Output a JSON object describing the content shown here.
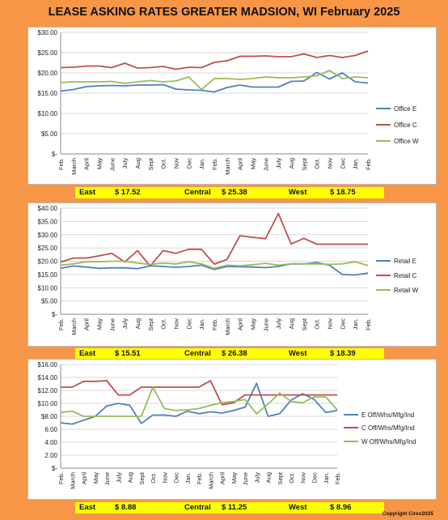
{
  "title": "LEASE ASKING RATES GREATER MADSION, WI  February 2025",
  "copyright": "Copyright Cirex2025",
  "x_labels": [
    "Feb.",
    "March",
    "April",
    "May",
    "June",
    "July",
    "Aug",
    "Sept",
    "Oct.",
    "Nov",
    "Dec",
    "Jan.",
    "Feb.",
    "March",
    "April",
    "May",
    "June",
    "July",
    "Aug",
    "Sept",
    "Oct.",
    "Nov",
    "Dec",
    "Jan.",
    "Feb."
  ],
  "summaries": [
    {
      "east_label": "East",
      "east_value": "$  17.52",
      "central_label": "Central",
      "central_value": "$  25.38",
      "west_label": "West",
      "west_value": "$  18.75"
    },
    {
      "east_label": "East",
      "east_value": "$  15.51",
      "central_label": "Central",
      "central_value": "$  26.38",
      "west_label": "West",
      "west_value": "$  18.39"
    },
    {
      "east_label": "East",
      "east_value": "$   8.88",
      "central_label": "Central",
      "central_value": "$  11.25",
      "west_label": "West",
      "west_value": "$   8.96"
    }
  ],
  "colors": {
    "east": "#4F81BD",
    "central": "#C0504D",
    "west": "#9BBB59"
  },
  "chart_data": [
    {
      "type": "line",
      "ylim": [
        0,
        30
      ],
      "yticks": [
        0,
        5,
        10,
        15,
        20,
        25,
        30
      ],
      "ytick_labels": [
        "$-",
        "$5.00",
        "$10.00",
        "$15.00",
        "$20.00",
        "$25.00",
        "$30.00"
      ],
      "legend_position": "right",
      "x_ticks": [
        "Feb.",
        "March",
        "April",
        "May",
        "June",
        "July",
        "Aug",
        "Sept",
        "Oct.",
        "Nov",
        "Dec",
        "Jan.",
        "Feb.",
        "March",
        "April",
        "May",
        "June",
        "July",
        "Aug",
        "Sept",
        "Oct.",
        "Nov",
        "Dec",
        "Jan.",
        "Feb."
      ],
      "series": [
        {
          "name": "Office E",
          "values": [
            15.5,
            15.9,
            16.6,
            16.8,
            16.9,
            16.8,
            17.0,
            17.0,
            17.1,
            16.0,
            15.8,
            15.7,
            15.3,
            16.4,
            17.0,
            16.5,
            16.5,
            16.5,
            17.9,
            18.0,
            20.1,
            18.5,
            20.0,
            17.8,
            17.5
          ]
        },
        {
          "name": "Office C",
          "values": [
            21.3,
            21.4,
            21.7,
            21.7,
            21.3,
            22.4,
            21.2,
            21.3,
            21.6,
            20.9,
            21.4,
            21.3,
            22.6,
            23.0,
            24.1,
            24.1,
            24.2,
            24.0,
            24.0,
            24.7,
            23.8,
            24.3,
            23.8,
            24.3,
            25.4
          ]
        },
        {
          "name": "Office W",
          "values": [
            17.6,
            17.8,
            17.8,
            17.8,
            17.9,
            17.4,
            17.8,
            18.1,
            17.8,
            18.0,
            19.0,
            15.9,
            18.6,
            18.6,
            18.4,
            18.6,
            19.0,
            18.8,
            18.8,
            19.0,
            19.3,
            20.6,
            18.6,
            19.0,
            18.8
          ]
        }
      ]
    },
    {
      "type": "line",
      "ylim": [
        0,
        40
      ],
      "yticks": [
        0,
        5,
        10,
        15,
        20,
        25,
        30,
        35,
        40
      ],
      "ytick_labels": [
        "$-",
        "$5.00",
        "$10.00",
        "$15.00",
        "$20.00",
        "$25.00",
        "$30.00",
        "$35.00",
        "$40.00"
      ],
      "legend_position": "right",
      "x_ticks": [
        "Feb.",
        "March",
        "April",
        "May",
        "June",
        "July",
        "Aug",
        "Sept",
        "Oct.",
        "Nov",
        "Dec",
        "Jan.",
        "Feb.",
        "March",
        "April",
        "May",
        "June",
        "July",
        "Aug",
        "Sept",
        "Oct.",
        "Nov",
        "Dec",
        "Jan.",
        "Feb."
      ],
      "series": [
        {
          "name": "Retail E",
          "values": [
            17.3,
            18.2,
            17.8,
            17.3,
            17.5,
            17.5,
            17.2,
            18.3,
            18.0,
            17.7,
            18.0,
            18.5,
            16.9,
            18.0,
            17.9,
            17.8,
            17.6,
            18.0,
            19.0,
            19.0,
            19.5,
            18.5,
            15.0,
            14.8,
            15.5
          ]
        },
        {
          "name": "Retail C",
          "values": [
            19.7,
            21.2,
            21.2,
            22.0,
            23.0,
            19.7,
            24.0,
            18.2,
            24.0,
            23.0,
            24.5,
            24.5,
            18.9,
            20.7,
            29.6,
            29.0,
            28.5,
            38.0,
            26.5,
            28.6,
            26.4,
            26.4,
            26.4,
            26.4,
            26.4
          ]
        },
        {
          "name": "Retail W",
          "values": [
            18.5,
            19.0,
            19.8,
            19.8,
            20.0,
            20.0,
            19.3,
            18.8,
            19.3,
            19.0,
            19.8,
            19.0,
            17.3,
            18.5,
            18.3,
            18.7,
            19.2,
            18.5,
            19.0,
            19.0,
            19.0,
            18.8,
            19.0,
            19.8,
            18.4
          ]
        }
      ]
    },
    {
      "type": "line",
      "ylim": [
        0,
        16
      ],
      "yticks": [
        0,
        2,
        4,
        6,
        8,
        10,
        12,
        14,
        16
      ],
      "ytick_labels": [
        "$-",
        "2.00",
        "4.00",
        "6.00",
        "$8.00",
        "$10.00",
        "$12.00",
        "$14.00",
        "$16.00"
      ],
      "legend_position": "right",
      "x_ticks": [
        "Feb.",
        "March",
        "April",
        "May",
        "June",
        "July",
        "Aug",
        "Sept",
        "Oct.",
        "Nov",
        "Dec",
        "Jan.",
        "Feb.",
        "March",
        "April",
        "May",
        "June",
        "July",
        "Aug",
        "Sept",
        "Oct.",
        "Nov",
        "Dec",
        "Jan.",
        "Feb."
      ],
      "series": [
        {
          "name": "E Off/Whs/Mfg/Ind",
          "values": [
            7.0,
            6.8,
            7.4,
            8.0,
            9.6,
            10.0,
            9.7,
            6.9,
            8.2,
            8.2,
            8.0,
            8.8,
            8.4,
            8.7,
            8.5,
            8.9,
            9.4,
            13.1,
            8.0,
            8.4,
            10.5,
            11.5,
            10.6,
            8.6,
            8.9
          ]
        },
        {
          "name": "C Off/Whs/Mfg/Ind",
          "values": [
            12.5,
            12.5,
            13.4,
            13.4,
            13.5,
            11.3,
            11.3,
            12.5,
            12.5,
            12.5,
            12.5,
            12.5,
            12.5,
            13.5,
            9.8,
            10.1,
            11.3,
            11.3,
            11.3,
            11.3,
            11.3,
            11.3,
            11.3,
            11.3,
            11.3
          ]
        },
        {
          "name": "W Off/Whs/Mfg/Ind",
          "values": [
            8.6,
            8.8,
            8.0,
            8.0,
            8.0,
            8.0,
            8.0,
            8.0,
            12.5,
            9.2,
            8.9,
            9.0,
            9.2,
            9.7,
            10.1,
            10.3,
            10.6,
            8.4,
            9.9,
            11.6,
            10.3,
            10.1,
            11.0,
            11.0,
            9.0
          ]
        }
      ]
    }
  ]
}
